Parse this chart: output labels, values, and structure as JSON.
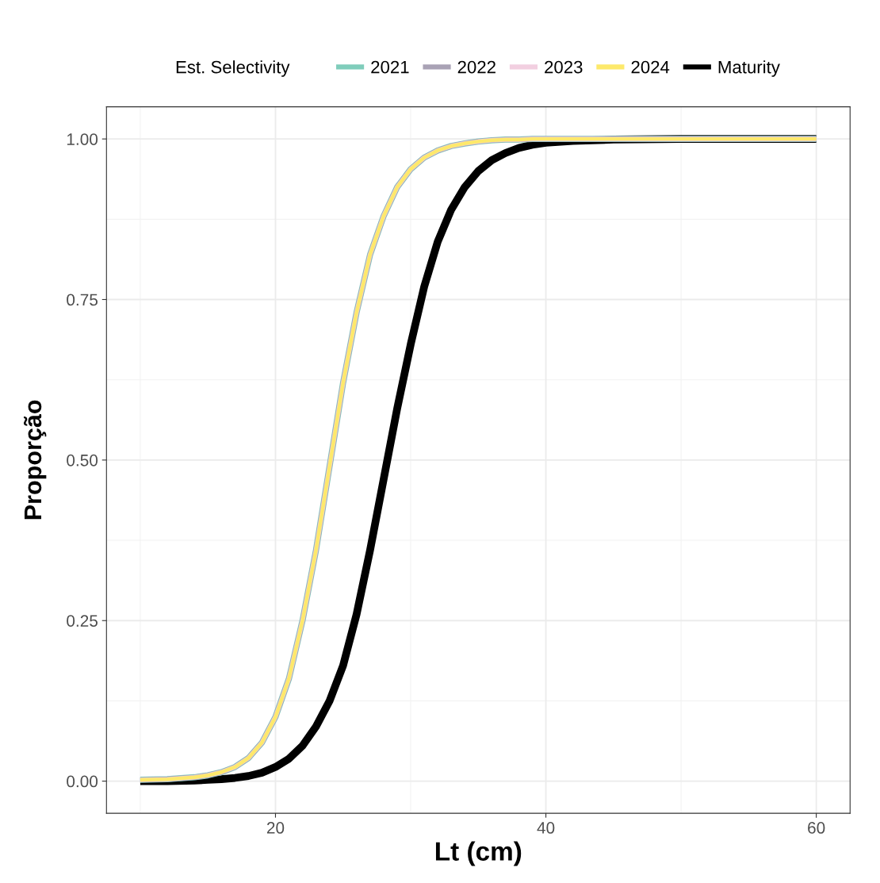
{
  "chart_data": {
    "type": "line",
    "xlabel": "Lt (cm)",
    "ylabel": "Proporção",
    "legend_title": "Est. Selectivity",
    "legend": "top",
    "xlim": [
      7.5,
      62.5
    ],
    "ylim": [
      -0.05,
      1.05
    ],
    "xticks": [
      20,
      40,
      60
    ],
    "yticks": [
      {
        "value": 0,
        "label": "0.00"
      },
      {
        "value": 0.25,
        "label": "0.25"
      },
      {
        "value": 0.5,
        "label": "0.50"
      },
      {
        "value": 0.75,
        "label": "0.75"
      },
      {
        "value": 1,
        "label": "1.00"
      }
    ],
    "grid": true,
    "marker": "none",
    "line_style": "solid",
    "x": [
      10,
      12,
      14,
      15,
      16,
      17,
      18,
      19,
      20,
      21,
      22,
      23,
      24,
      25,
      26,
      27,
      28,
      29,
      30,
      31,
      32,
      33,
      34,
      35,
      36,
      37,
      38,
      39,
      40,
      42,
      45,
      50,
      60
    ],
    "series": [
      {
        "name": "2021",
        "color": "#7fcdbb",
        "values": [
          0.002,
          0.003,
          0.006,
          0.009,
          0.014,
          0.022,
          0.036,
          0.06,
          0.1,
          0.16,
          0.25,
          0.36,
          0.49,
          0.62,
          0.73,
          0.82,
          0.88,
          0.925,
          0.953,
          0.971,
          0.982,
          0.989,
          0.993,
          0.996,
          0.998,
          0.999,
          0.999,
          1.0,
          1.0,
          1.0,
          1.0,
          1.0,
          1.0
        ]
      },
      {
        "name": "2022",
        "color": "#a9a2b5",
        "values": [
          0.002,
          0.003,
          0.006,
          0.009,
          0.014,
          0.022,
          0.036,
          0.06,
          0.1,
          0.16,
          0.25,
          0.36,
          0.49,
          0.62,
          0.73,
          0.82,
          0.88,
          0.925,
          0.953,
          0.971,
          0.982,
          0.989,
          0.993,
          0.996,
          0.998,
          0.999,
          0.999,
          1.0,
          1.0,
          1.0,
          1.0,
          1.0,
          1.0
        ]
      },
      {
        "name": "2023",
        "color": "#f2cfe0",
        "values": [
          0.002,
          0.003,
          0.006,
          0.009,
          0.014,
          0.022,
          0.036,
          0.06,
          0.1,
          0.16,
          0.25,
          0.36,
          0.49,
          0.62,
          0.73,
          0.82,
          0.88,
          0.925,
          0.953,
          0.971,
          0.982,
          0.989,
          0.993,
          0.996,
          0.998,
          0.999,
          0.999,
          1.0,
          1.0,
          1.0,
          1.0,
          1.0,
          1.0
        ]
      },
      {
        "name": "2024",
        "color": "#fde96b",
        "values": [
          0.002,
          0.003,
          0.006,
          0.009,
          0.014,
          0.022,
          0.036,
          0.06,
          0.1,
          0.16,
          0.25,
          0.36,
          0.49,
          0.62,
          0.73,
          0.82,
          0.88,
          0.925,
          0.953,
          0.971,
          0.982,
          0.989,
          0.993,
          0.996,
          0.998,
          0.999,
          0.999,
          1.0,
          1.0,
          1.0,
          1.0,
          1.0,
          1.0
        ]
      },
      {
        "name": "Maturity",
        "color": "#000000",
        "values": [
          0.0,
          0.0,
          0.001,
          0.002,
          0.003,
          0.005,
          0.008,
          0.013,
          0.022,
          0.035,
          0.055,
          0.085,
          0.125,
          0.18,
          0.26,
          0.36,
          0.47,
          0.58,
          0.68,
          0.77,
          0.84,
          0.89,
          0.925,
          0.95,
          0.967,
          0.978,
          0.986,
          0.991,
          0.994,
          0.997,
          0.999,
          1.0,
          1.0
        ]
      }
    ]
  }
}
